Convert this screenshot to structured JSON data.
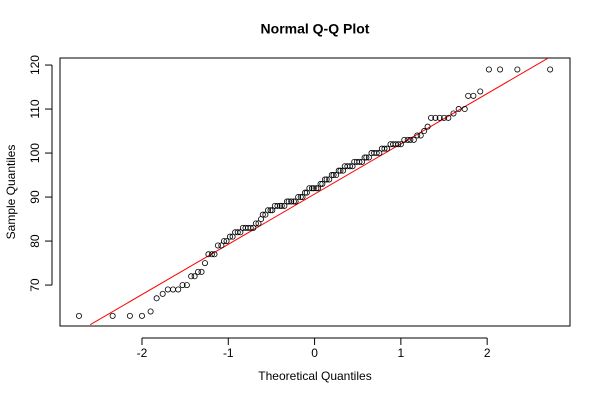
{
  "chart_data": {
    "type": "scatter",
    "title": "Normal Q-Q Plot",
    "x_label": "Theoretical Quantiles",
    "y_label": "Sample Quantiles",
    "xlim": [
      -2.95,
      2.96
    ],
    "ylim": [
      60.7,
      121.6
    ],
    "xticks": [
      -2,
      -1,
      0,
      1,
      2
    ],
    "yticks": [
      70,
      80,
      90,
      100,
      110,
      120
    ],
    "point_color": "#000000",
    "reference_line": {
      "x": [
        -2.6,
        2.7
      ],
      "y": [
        61,
        121.5
      ],
      "color": "#ff0000"
    },
    "x": [
      -2.73,
      -2.34,
      -2.14,
      -2.0,
      -1.9,
      -1.83,
      -1.76,
      -1.7,
      -1.64,
      -1.58,
      -1.53,
      -1.48,
      -1.43,
      -1.39,
      -1.35,
      -1.31,
      -1.27,
      -1.23,
      -1.19,
      -1.16,
      -1.12,
      -1.08,
      -1.05,
      -1.02,
      -0.98,
      -0.95,
      -0.92,
      -0.89,
      -0.86,
      -0.83,
      -0.8,
      -0.77,
      -0.74,
      -0.71,
      -0.68,
      -0.65,
      -0.62,
      -0.6,
      -0.57,
      -0.54,
      -0.51,
      -0.49,
      -0.46,
      -0.43,
      -0.4,
      -0.38,
      -0.35,
      -0.32,
      -0.3,
      -0.27,
      -0.24,
      -0.22,
      -0.19,
      -0.16,
      -0.14,
      -0.11,
      -0.09,
      -0.06,
      -0.03,
      -0.01,
      0.02,
      0.04,
      0.07,
      0.09,
      0.12,
      0.14,
      0.17,
      0.2,
      0.22,
      0.25,
      0.28,
      0.3,
      0.33,
      0.35,
      0.38,
      0.41,
      0.44,
      0.46,
      0.49,
      0.52,
      0.55,
      0.58,
      0.6,
      0.63,
      0.66,
      0.69,
      0.72,
      0.75,
      0.78,
      0.81,
      0.84,
      0.88,
      0.91,
      0.94,
      0.97,
      1.0,
      1.04,
      1.08,
      1.11,
      1.15,
      1.19,
      1.23,
      1.27,
      1.31,
      1.35,
      1.4,
      1.45,
      1.5,
      1.55,
      1.61,
      1.67,
      1.74,
      1.78,
      1.84,
      1.92,
      2.02,
      2.15,
      2.35,
      2.73
    ],
    "values": [
      63,
      63,
      63,
      63,
      64,
      67,
      68,
      69,
      69,
      69,
      70,
      70,
      72,
      72,
      73,
      73,
      75,
      77,
      77,
      77,
      79,
      79,
      80,
      80,
      81,
      81,
      82,
      82,
      82,
      83,
      83,
      83,
      83,
      83,
      84,
      84,
      85,
      86,
      86,
      87,
      87,
      87,
      88,
      88,
      88,
      88,
      88,
      89,
      89,
      89,
      89,
      89,
      90,
      90,
      90,
      91,
      91,
      92,
      92,
      92,
      92,
      92,
      93,
      93,
      94,
      94,
      94,
      95,
      95,
      95,
      96,
      96,
      96,
      97,
      97,
      97,
      97,
      98,
      98,
      98,
      98,
      99,
      99,
      99,
      100,
      100,
      100,
      100,
      101,
      101,
      101,
      102,
      102,
      102,
      102,
      102,
      103,
      103,
      103,
      103,
      104,
      104,
      105,
      106,
      108,
      108,
      108,
      108,
      108,
      109,
      110,
      110,
      113,
      113,
      114,
      119,
      119,
      119,
      119
    ]
  }
}
